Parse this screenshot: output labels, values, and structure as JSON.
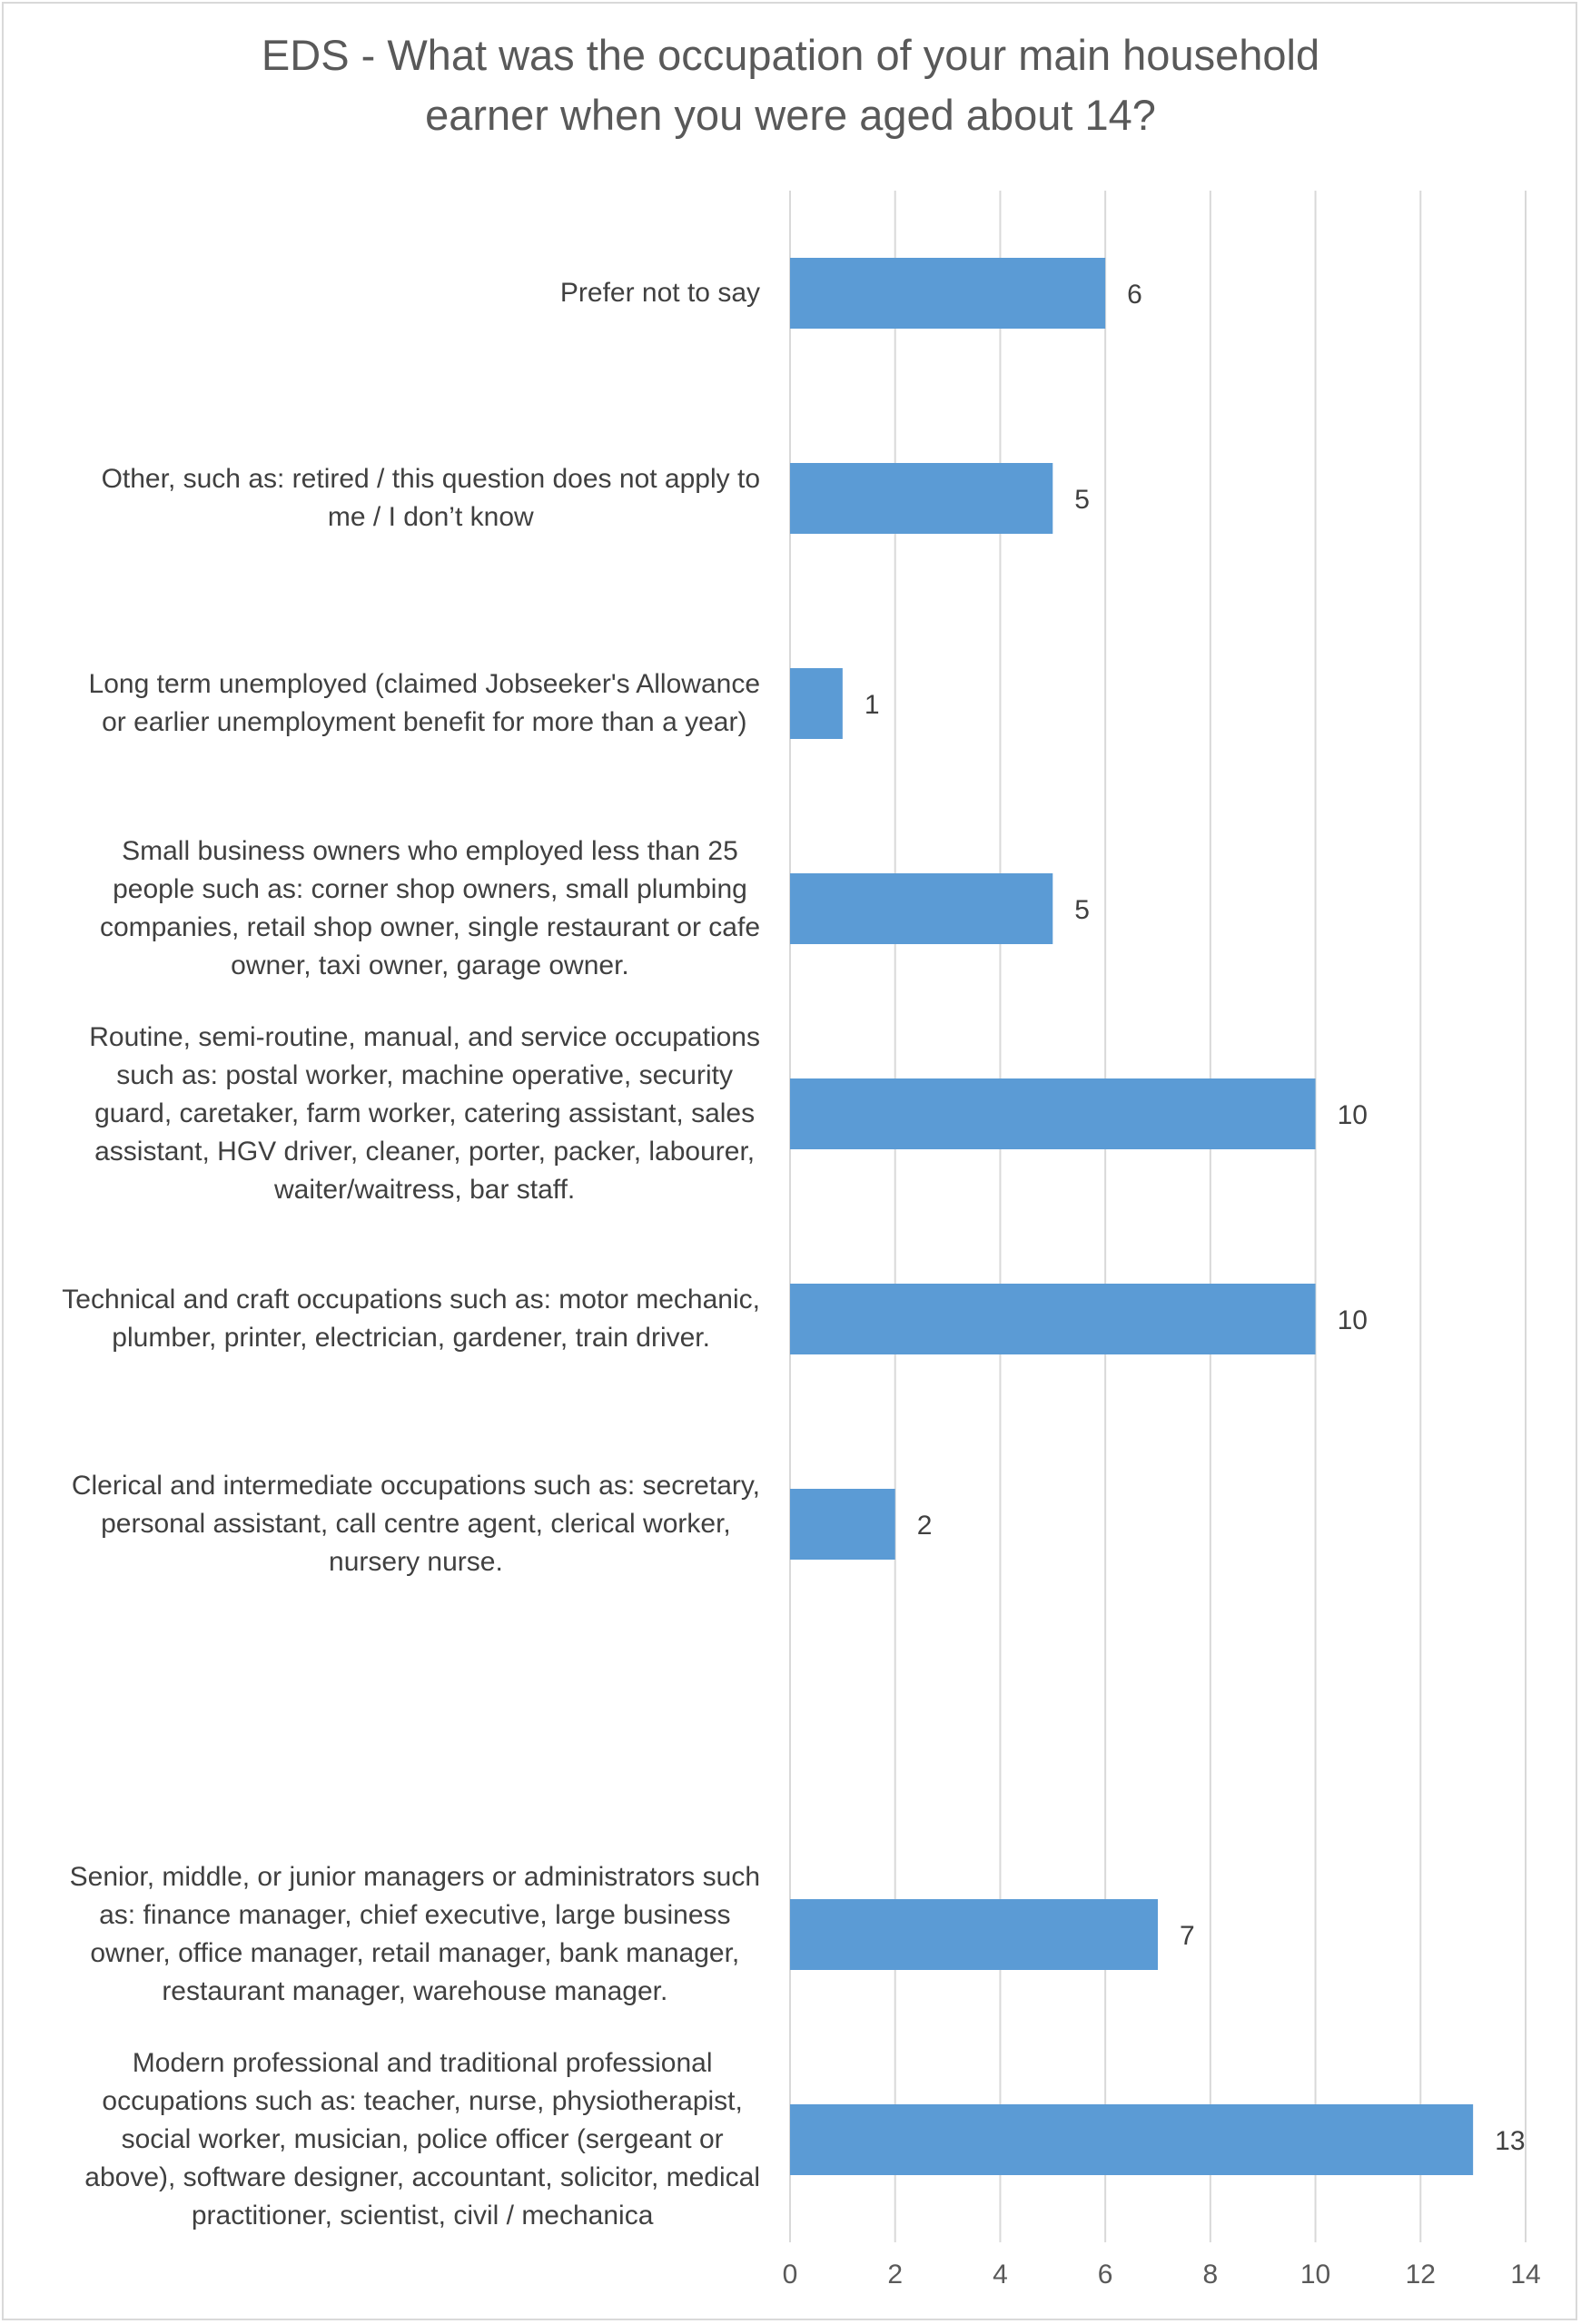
{
  "chart_data": {
    "type": "bar",
    "orientation": "horizontal",
    "title_lines": [
      "EDS - What was the occupation of your main household",
      "earner when you were aged about 14?"
    ],
    "categories": [
      {
        "lines": [
          "Prefer not to say"
        ],
        "value": 6
      },
      {
        "lines": [
          "Other, such as: retired / this question does not apply to",
          "me / I don’t know"
        ],
        "value": 5
      },
      {
        "lines": [
          "Long term unemployed (claimed Jobseeker's Allowance",
          "or earlier unemployment benefit for more than a year)"
        ],
        "value": 1
      },
      {
        "lines": [
          "Small business owners who employed less than 25",
          "people such as: corner shop owners, small plumbing",
          "companies, retail shop owner, single restaurant or cafe",
          "owner, taxi owner, garage owner."
        ],
        "value": 5
      },
      {
        "lines": [
          "Routine, semi-routine, manual, and service occupations",
          "such as: postal worker, machine operative, security",
          "guard, caretaker, farm worker, catering assistant, sales",
          "assistant, HGV driver, cleaner, porter, packer, labourer,",
          "waiter/waitress, bar staff."
        ],
        "value": 10
      },
      {
        "lines": [
          "Technical and craft occupations such as: motor mechanic,",
          "plumber, printer, electrician, gardener, train driver."
        ],
        "value": 10
      },
      {
        "lines": [
          "Clerical and intermediate occupations such as: secretary,",
          "personal assistant, call centre agent, clerical worker,",
          "nursery nurse."
        ],
        "value": 2
      },
      {
        "lines": [],
        "value": null
      },
      {
        "lines": [
          "Senior, middle, or junior managers or administrators such",
          "as: finance manager, chief executive, large business",
          "owner, office manager, retail manager, bank manager,",
          "restaurant manager, warehouse manager."
        ],
        "value": 7
      },
      {
        "lines": [
          "Modern professional and traditional professional",
          "occupations such as: teacher, nurse, physiotherapist,",
          "social worker, musician, police officer (sergeant or",
          "above), software designer, accountant, solicitor, medical",
          "practitioner, scientist, civil / mechanica"
        ],
        "value": 13
      }
    ],
    "xlim": [
      0,
      14
    ],
    "x_ticks": [
      0,
      2,
      4,
      6,
      8,
      10,
      12,
      14
    ],
    "grid": true,
    "bar_color": "#5b9bd5",
    "gridline_color": "#d9d9d9"
  }
}
